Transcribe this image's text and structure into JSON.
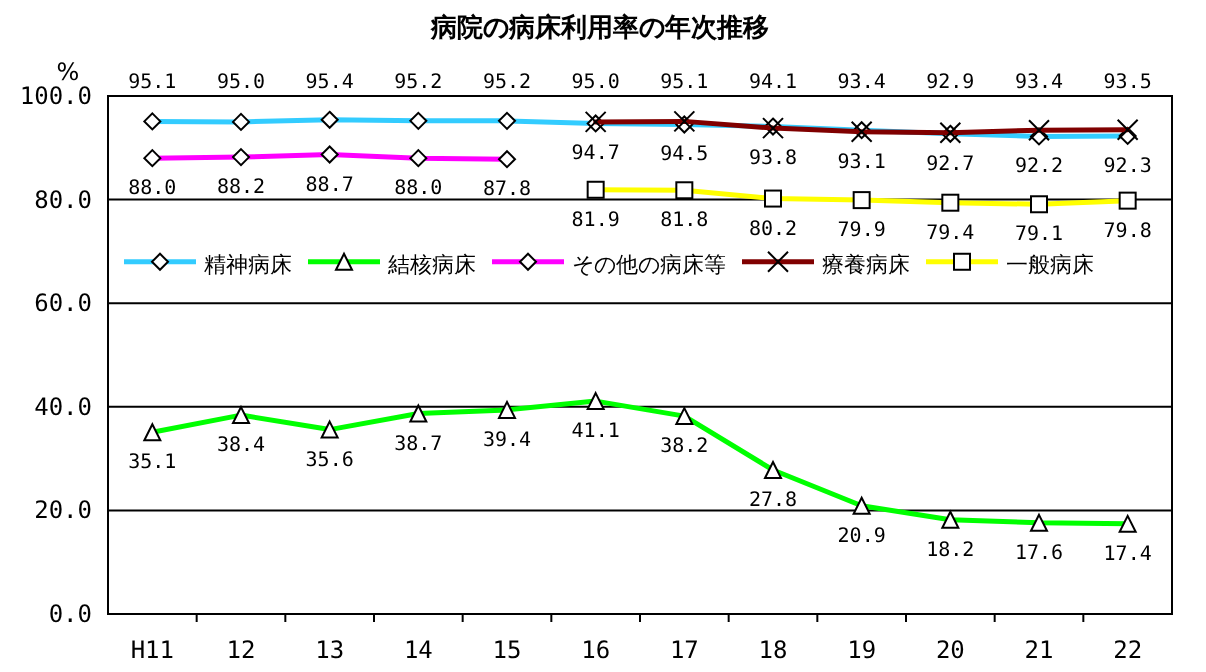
{
  "chart_data": {
    "type": "line",
    "title": "病院の病床利用率の年次推移",
    "ylabel": "%",
    "categories": [
      "H11",
      "12",
      "13",
      "14",
      "15",
      "16",
      "17",
      "18",
      "19",
      "20",
      "21",
      "22"
    ],
    "ylim": [
      0,
      100
    ],
    "yticks": [
      {
        "value": 0,
        "label": "0.0"
      },
      {
        "value": 20,
        "label": "20.0"
      },
      {
        "value": 40,
        "label": "40.0"
      },
      {
        "value": 60,
        "label": "60.0"
      },
      {
        "value": 80,
        "label": "80.0"
      },
      {
        "value": 100,
        "label": "100.0"
      }
    ],
    "grid": "y",
    "legend": "top",
    "line_style": "solid",
    "series": [
      {
        "name": "精神病床",
        "color": "#33ccff",
        "marker": "diamond",
        "values": [
          95.1,
          95.0,
          95.4,
          95.2,
          95.2,
          94.7,
          94.5,
          94.1,
          93.4,
          92.7,
          92.2,
          92.3
        ],
        "value_labels": [
          "95.1",
          "95.0",
          "95.4",
          "95.2",
          "95.2",
          "94.7",
          "94.5",
          "94.1",
          "93.4",
          "92.7",
          "92.2",
          "92.3"
        ]
      },
      {
        "name": "結核病床",
        "color": "#00ff00",
        "marker": "triangle",
        "values": [
          35.1,
          38.4,
          35.6,
          38.7,
          39.4,
          41.1,
          38.2,
          27.8,
          20.9,
          18.2,
          17.6,
          17.4
        ],
        "value_labels": [
          "35.1",
          "38.4",
          "35.6",
          "38.7",
          "39.4",
          "41.1",
          "38.2",
          "27.8",
          "20.9",
          "18.2",
          "17.6",
          "17.4"
        ]
      },
      {
        "name": "その他の病床等",
        "color": "#ff00ff",
        "marker": "diamond",
        "values": [
          88.0,
          88.2,
          88.7,
          88.0,
          87.8,
          null,
          null,
          null,
          null,
          null,
          null,
          null
        ],
        "value_labels": [
          "88.0",
          "88.2",
          "88.7",
          "88.0",
          "87.8",
          null,
          null,
          null,
          null,
          null,
          null,
          null
        ]
      },
      {
        "name": "療養病床",
        "color": "#800000",
        "marker": "cross",
        "values": [
          null,
          null,
          null,
          null,
          null,
          95.0,
          95.1,
          93.8,
          93.1,
          92.9,
          93.4,
          93.5
        ],
        "value_labels": [
          null,
          null,
          null,
          null,
          null,
          "95.0",
          "95.1",
          "93.8",
          "93.1",
          "92.9",
          "93.4",
          "93.5"
        ]
      },
      {
        "name": "一般病床",
        "color": "#ffff00",
        "marker": "square",
        "values": [
          null,
          null,
          null,
          null,
          null,
          81.9,
          81.8,
          80.2,
          79.9,
          79.4,
          79.1,
          79.8
        ],
        "value_labels": [
          null,
          null,
          null,
          null,
          null,
          "81.9",
          "81.8",
          "80.2",
          "79.9",
          "79.4",
          "79.1",
          "79.8"
        ]
      }
    ]
  }
}
